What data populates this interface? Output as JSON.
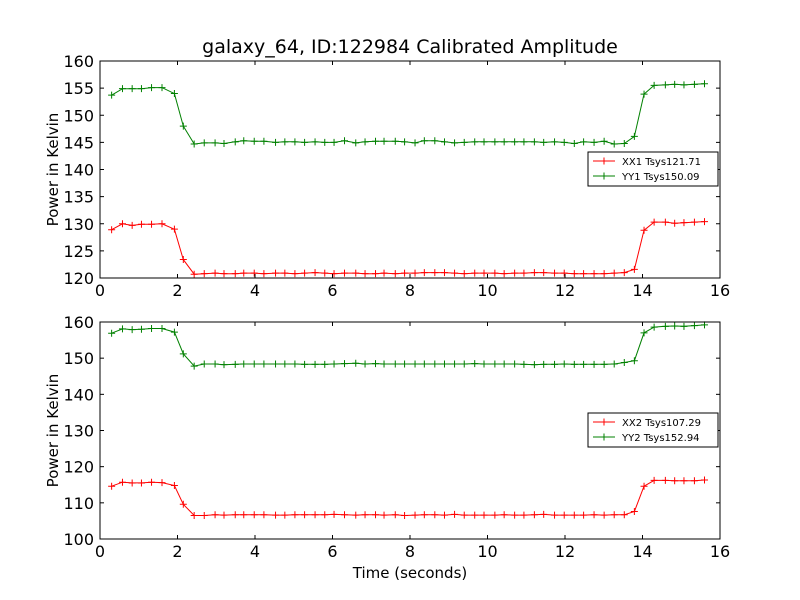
{
  "title": "galaxy_64, ID:122984 Calibrated Amplitude",
  "chart_data": [
    {
      "type": "line",
      "ylabel": "Power in Kelvin",
      "xlabel": "",
      "xlim": [
        0,
        16
      ],
      "ylim": [
        120,
        160
      ],
      "xticks": [
        "0",
        "2",
        "4",
        "6",
        "8",
        "10",
        "12",
        "14",
        "16"
      ],
      "yticks": [
        "120",
        "125",
        "130",
        "135",
        "140",
        "145",
        "150",
        "155",
        "160"
      ],
      "legend_position": "right",
      "series": [
        {
          "name": "XX1 Tsys121.71",
          "color": "#ff0000",
          "x": [
            0.3,
            0.58,
            0.83,
            1.07,
            1.33,
            1.6,
            1.92,
            2.15,
            2.43,
            2.69,
            2.97,
            3.2,
            3.49,
            3.71,
            3.98,
            4.23,
            4.53,
            4.77,
            5.03,
            5.28,
            5.55,
            5.8,
            6.04,
            6.31,
            6.6,
            6.84,
            7.11,
            7.33,
            7.62,
            7.86,
            8.13,
            8.37,
            8.64,
            8.89,
            9.15,
            9.4,
            9.67,
            9.91,
            10.19,
            10.43,
            10.7,
            10.94,
            11.21,
            11.45,
            11.73,
            11.98,
            12.24,
            12.48,
            12.75,
            13.01,
            13.27,
            13.53,
            13.79,
            14.04,
            14.3,
            14.59,
            14.83,
            15.07,
            15.34,
            15.6
          ],
          "y": [
            128.9,
            130.0,
            129.7,
            129.9,
            129.9,
            130.0,
            129.0,
            123.4,
            120.7,
            120.8,
            120.9,
            120.8,
            120.8,
            120.9,
            120.9,
            120.8,
            120.9,
            120.9,
            120.8,
            120.9,
            121.0,
            120.9,
            120.8,
            120.9,
            120.9,
            120.8,
            120.8,
            120.9,
            120.8,
            120.9,
            120.9,
            121.0,
            121.0,
            121.0,
            120.9,
            120.8,
            120.9,
            120.9,
            120.9,
            120.8,
            120.9,
            120.9,
            121.0,
            121.0,
            120.9,
            120.9,
            120.8,
            120.8,
            120.8,
            120.8,
            120.9,
            121.0,
            121.6,
            128.8,
            130.3,
            130.3,
            130.1,
            130.2,
            130.3,
            130.4
          ]
        },
        {
          "name": "YY1 Tsys150.09",
          "color": "#008000",
          "x": [
            0.3,
            0.58,
            0.83,
            1.07,
            1.33,
            1.6,
            1.92,
            2.15,
            2.43,
            2.69,
            2.97,
            3.2,
            3.49,
            3.71,
            3.98,
            4.23,
            4.53,
            4.77,
            5.03,
            5.28,
            5.55,
            5.8,
            6.04,
            6.31,
            6.6,
            6.84,
            7.11,
            7.33,
            7.62,
            7.86,
            8.13,
            8.37,
            8.64,
            8.89,
            9.15,
            9.4,
            9.67,
            9.91,
            10.19,
            10.43,
            10.7,
            10.94,
            11.21,
            11.45,
            11.73,
            11.98,
            12.24,
            12.48,
            12.75,
            13.01,
            13.27,
            13.53,
            13.79,
            14.04,
            14.3,
            14.59,
            14.83,
            15.07,
            15.34,
            15.6
          ],
          "y": [
            153.7,
            154.9,
            154.9,
            154.9,
            155.1,
            155.1,
            154.0,
            148.0,
            144.7,
            144.9,
            144.9,
            144.8,
            145.1,
            145.3,
            145.2,
            145.2,
            145.0,
            145.1,
            145.1,
            145.0,
            145.1,
            145.0,
            145.0,
            145.3,
            144.9,
            145.1,
            145.2,
            145.2,
            145.2,
            145.1,
            144.9,
            145.3,
            145.3,
            145.1,
            144.9,
            145.0,
            145.1,
            145.1,
            145.1,
            145.1,
            145.1,
            145.1,
            145.1,
            145.0,
            145.1,
            145.0,
            144.8,
            145.1,
            145.0,
            145.2,
            144.7,
            144.8,
            146.1,
            153.9,
            155.5,
            155.6,
            155.7,
            155.6,
            155.7,
            155.8
          ]
        }
      ]
    },
    {
      "type": "line",
      "ylabel": "Power in Kelvin",
      "xlabel": "Time (seconds)",
      "xlim": [
        0,
        16
      ],
      "ylim": [
        100,
        160
      ],
      "xticks": [
        "0",
        "2",
        "4",
        "6",
        "8",
        "10",
        "12",
        "14",
        "16"
      ],
      "yticks": [
        "100",
        "110",
        "120",
        "130",
        "140",
        "150",
        "160"
      ],
      "legend_position": "right",
      "series": [
        {
          "name": "XX2 Tsys107.29",
          "color": "#ff0000",
          "x": [
            0.3,
            0.58,
            0.83,
            1.07,
            1.33,
            1.6,
            1.92,
            2.15,
            2.43,
            2.69,
            2.97,
            3.2,
            3.49,
            3.71,
            3.98,
            4.23,
            4.53,
            4.77,
            5.03,
            5.28,
            5.55,
            5.8,
            6.04,
            6.31,
            6.6,
            6.84,
            7.11,
            7.33,
            7.62,
            7.86,
            8.13,
            8.37,
            8.64,
            8.89,
            9.15,
            9.4,
            9.67,
            9.91,
            10.19,
            10.43,
            10.7,
            10.94,
            11.21,
            11.45,
            11.73,
            11.98,
            12.24,
            12.48,
            12.75,
            13.01,
            13.27,
            13.53,
            13.79,
            14.04,
            14.3,
            14.59,
            14.83,
            15.07,
            15.34,
            15.6
          ],
          "y": [
            114.6,
            115.7,
            115.5,
            115.5,
            115.7,
            115.6,
            114.8,
            109.6,
            106.5,
            106.5,
            106.7,
            106.6,
            106.7,
            106.7,
            106.7,
            106.7,
            106.6,
            106.6,
            106.7,
            106.7,
            106.7,
            106.7,
            106.8,
            106.7,
            106.6,
            106.7,
            106.7,
            106.6,
            106.7,
            106.5,
            106.6,
            106.7,
            106.7,
            106.6,
            106.8,
            106.6,
            106.6,
            106.6,
            106.6,
            106.7,
            106.6,
            106.6,
            106.7,
            106.8,
            106.6,
            106.6,
            106.6,
            106.6,
            106.7,
            106.6,
            106.7,
            106.7,
            107.6,
            114.6,
            116.2,
            116.2,
            116.1,
            116.1,
            116.1,
            116.3
          ]
        },
        {
          "name": "YY2 Tsys152.94",
          "color": "#008000",
          "x": [
            0.3,
            0.58,
            0.83,
            1.07,
            1.33,
            1.6,
            1.92,
            2.15,
            2.43,
            2.69,
            2.97,
            3.2,
            3.49,
            3.71,
            3.98,
            4.23,
            4.53,
            4.77,
            5.03,
            5.28,
            5.55,
            5.8,
            6.04,
            6.31,
            6.6,
            6.84,
            7.11,
            7.33,
            7.62,
            7.86,
            8.13,
            8.37,
            8.64,
            8.89,
            9.15,
            9.4,
            9.67,
            9.91,
            10.19,
            10.43,
            10.7,
            10.94,
            11.21,
            11.45,
            11.73,
            11.98,
            12.24,
            12.48,
            12.75,
            13.01,
            13.27,
            13.53,
            13.79,
            14.04,
            14.3,
            14.59,
            14.83,
            15.07,
            15.34,
            15.6
          ],
          "y": [
            156.9,
            158.1,
            157.9,
            158.0,
            158.2,
            158.2,
            157.2,
            151.2,
            147.8,
            148.4,
            148.4,
            148.2,
            148.3,
            148.4,
            148.4,
            148.4,
            148.4,
            148.4,
            148.4,
            148.3,
            148.3,
            148.3,
            148.4,
            148.5,
            148.6,
            148.4,
            148.5,
            148.4,
            148.4,
            148.4,
            148.4,
            148.4,
            148.4,
            148.4,
            148.4,
            148.4,
            148.5,
            148.4,
            148.4,
            148.4,
            148.4,
            148.3,
            148.2,
            148.3,
            148.3,
            148.4,
            148.3,
            148.3,
            148.3,
            148.3,
            148.4,
            148.8,
            149.3,
            157.0,
            158.6,
            158.8,
            158.9,
            158.8,
            159.0,
            159.2
          ]
        }
      ]
    }
  ]
}
